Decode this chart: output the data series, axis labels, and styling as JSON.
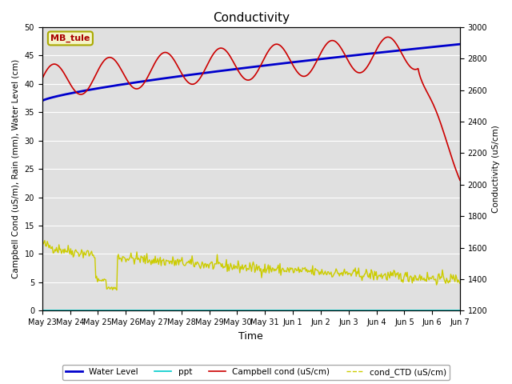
{
  "title": "Conductivity",
  "xlabel": "Time",
  "ylabel_left": "Campbell Cond (uS/m), Rain (mm), Water Level (cm)",
  "ylabel_right": "Conductivity (uS/cm)",
  "ylim_left": [
    0,
    50
  ],
  "ylim_right": [
    1200,
    3000
  ],
  "site_label": "MB_tule",
  "background_color": "#e0e0e0",
  "grid_color": "#ffffff",
  "x_tick_labels": [
    "May 23",
    "May 24",
    "May 25",
    "May 26",
    "May 27",
    "May 28",
    "May 29",
    "May 30",
    "May 31",
    "Jun 1",
    "Jun 2",
    "Jun 3",
    "Jun 4",
    "Jun 5",
    "Jun 6",
    "Jun 7"
  ],
  "n_points": 500,
  "title_fontsize": 11,
  "tick_fontsize": 7,
  "ylabel_fontsize": 7.5
}
